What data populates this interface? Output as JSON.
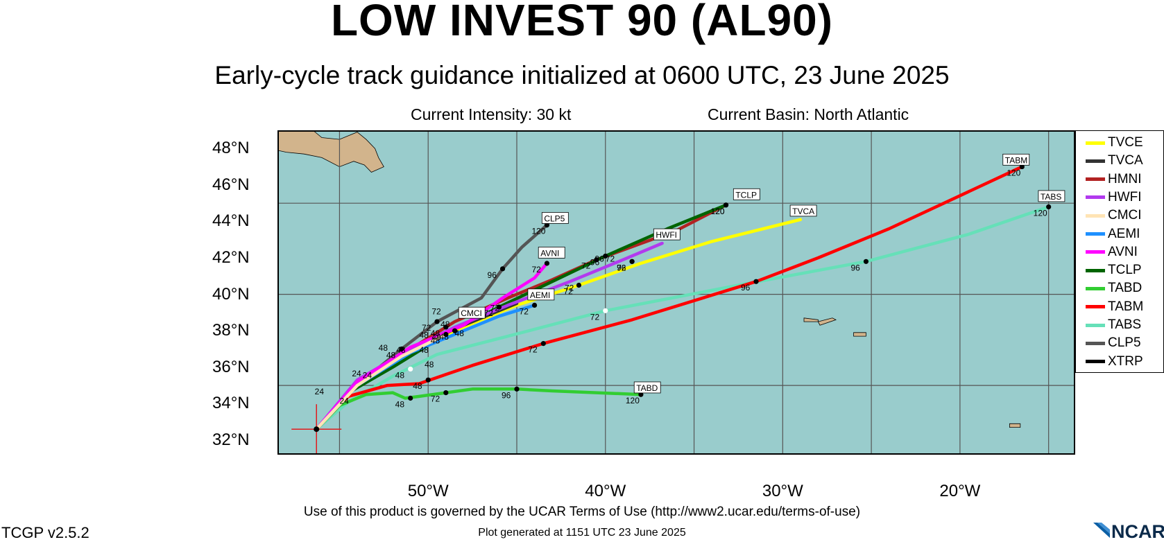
{
  "header": {
    "title": "LOW INVEST 90 (AL90)",
    "subtitle": "Early-cycle track guidance initialized at 0600 UTC, 23 June 2025",
    "intensity": "Current Intensity: 30 kt",
    "basin": "Current Basin: North Atlantic"
  },
  "axes": {
    "lat_labels": [
      "48°N",
      "46°N",
      "44°N",
      "42°N",
      "40°N",
      "38°N",
      "36°N",
      "34°N",
      "32°N"
    ],
    "lon_labels": [
      "50°W",
      "40°W",
      "30°W",
      "20°W"
    ],
    "lon_range": [
      -58.5,
      -13.5
    ],
    "lat_range": [
      31.2,
      49.0
    ]
  },
  "footer": {
    "terms": "Use of this product is governed by the UCAR Terms of Use (http://www2.ucar.edu/terms-of-use)",
    "generated": "Plot generated at 1151 UTC   23 June 2025",
    "version": "TCGP v2.5.2",
    "logo_text": "NCAR"
  },
  "colors": {
    "ocean": "#99cccc",
    "land": "#d2b48c",
    "grid": "#555555",
    "current_position": "#e31a1c"
  },
  "legend": [
    {
      "name": "TVCE",
      "color": "#ffff00"
    },
    {
      "name": "TVCA",
      "color": "#333333"
    },
    {
      "name": "HMNI",
      "color": "#b22222"
    },
    {
      "name": "HWFI",
      "color": "#b23aee"
    },
    {
      "name": "CMCI",
      "color": "#ffe4b5"
    },
    {
      "name": "AEMI",
      "color": "#1e90ff"
    },
    {
      "name": "AVNI",
      "color": "#ff00ff"
    },
    {
      "name": "TCLP",
      "color": "#006400"
    },
    {
      "name": "TABD",
      "color": "#32cd32"
    },
    {
      "name": "TABM",
      "color": "#ff0000"
    },
    {
      "name": "TABS",
      "color": "#66e0b8"
    },
    {
      "name": "CLP5",
      "color": "#555555"
    },
    {
      "name": "XTRP",
      "color": "#000000"
    }
  ],
  "chart_data": {
    "type": "map-tracks",
    "current_position": {
      "lon": -56.3,
      "lat": 32.6
    },
    "tracks": [
      {
        "name": "TABS",
        "color": "#66e0b8",
        "points": [
          [
            -56.3,
            32.6
          ],
          [
            -54.5,
            34.1
          ],
          [
            -52.0,
            35.5
          ],
          [
            -49.5,
            36.7
          ],
          [
            -45.5,
            37.7
          ],
          [
            -40.0,
            39.1
          ],
          [
            -32.5,
            40.5
          ],
          [
            -25.3,
            41.8
          ],
          [
            -19.5,
            43.3
          ],
          [
            -15.0,
            44.8
          ]
        ],
        "markers": [
          {
            "label": "48",
            "lon": -51.0,
            "lat": 35.9,
            "dot": "white"
          },
          {
            "label": "72",
            "lon": -40.0,
            "lat": 39.1,
            "dot": "white"
          },
          {
            "label": "96",
            "lon": -25.3,
            "lat": 41.8,
            "dot": "black"
          },
          {
            "label": "120",
            "lon": -15.0,
            "lat": 44.8,
            "dot": "black"
          }
        ],
        "tag": {
          "text": "TABS",
          "lon": -15.5,
          "lat": 45.2
        }
      },
      {
        "name": "TABM",
        "color": "#ff0000",
        "points": [
          [
            -56.3,
            32.6
          ],
          [
            -54.5,
            34.4
          ],
          [
            -52.3,
            35.0
          ],
          [
            -50.5,
            35.1
          ],
          [
            -49.0,
            35.6
          ],
          [
            -47.5,
            36.1
          ],
          [
            -43.5,
            37.3
          ],
          [
            -38.5,
            38.6
          ],
          [
            -31.5,
            40.7
          ],
          [
            -28.0,
            42.0
          ],
          [
            -24.0,
            43.6
          ],
          [
            -16.5,
            47.0
          ]
        ],
        "markers": [
          {
            "label": "48",
            "lon": -50.0,
            "lat": 35.3,
            "dot": "black"
          },
          {
            "label": "72",
            "lon": -43.5,
            "lat": 37.3,
            "dot": "black"
          },
          {
            "label": "96",
            "lon": -31.5,
            "lat": 40.7,
            "dot": "black"
          },
          {
            "label": "120",
            "lon": -16.5,
            "lat": 47.0,
            "dot": "black"
          }
        ],
        "tag": {
          "text": "TABM",
          "lon": -17.5,
          "lat": 47.2
        }
      },
      {
        "name": "TABD",
        "color": "#32cd32",
        "points": [
          [
            -56.3,
            32.6
          ],
          [
            -55.0,
            33.9
          ],
          [
            -53.5,
            34.5
          ],
          [
            -52.0,
            34.6
          ],
          [
            -51.3,
            34.3
          ],
          [
            -50.5,
            34.4
          ],
          [
            -49.0,
            34.6
          ],
          [
            -47.5,
            34.8
          ],
          [
            -45.0,
            34.8
          ],
          [
            -43.0,
            34.7
          ],
          [
            -38.0,
            34.5
          ]
        ],
        "markers": [
          {
            "label": "48",
            "lon": -51.0,
            "lat": 34.3,
            "dot": "black"
          },
          {
            "label": "72",
            "lon": -49.0,
            "lat": 34.6,
            "dot": "black"
          },
          {
            "label": "96",
            "lon": -45.0,
            "lat": 34.8,
            "dot": "black"
          },
          {
            "label": "120",
            "lon": -38.0,
            "lat": 34.5,
            "dot": "black"
          }
        ],
        "tag": {
          "text": "TABD",
          "lon": -38.3,
          "lat": 34.7
        }
      },
      {
        "name": "CLP5",
        "color": "#555555",
        "points": [
          [
            -56.3,
            32.6
          ],
          [
            -54.0,
            35.0
          ],
          [
            -51.5,
            37.0
          ],
          [
            -49.5,
            38.5
          ],
          [
            -47.0,
            39.8
          ],
          [
            -45.8,
            41.4
          ],
          [
            -44.7,
            42.6
          ],
          [
            -43.3,
            43.8
          ]
        ],
        "markers": [
          {
            "label": "48",
            "lon": -51.5,
            "lat": 37.0,
            "dot": "black"
          },
          {
            "label": "72",
            "lon": -49.5,
            "lat": 38.5,
            "dot": "black"
          },
          {
            "label": "96",
            "lon": -45.8,
            "lat": 41.4,
            "dot": "black"
          },
          {
            "label": "120",
            "lon": -43.3,
            "lat": 43.8,
            "dot": "black"
          }
        ],
        "tag": {
          "text": "CLP5",
          "lon": -43.5,
          "lat": 44.0
        }
      },
      {
        "name": "HMNI",
        "color": "#b22222",
        "points": [
          [
            -56.3,
            32.6
          ],
          [
            -54.0,
            35.2
          ],
          [
            -51.0,
            37.0
          ],
          [
            -48.5,
            38.5
          ],
          [
            -45.5,
            39.8
          ],
          [
            -43.0,
            40.8
          ],
          [
            -40.5,
            41.9
          ],
          [
            -36.0,
            43.5
          ],
          [
            -33.2,
            44.9
          ]
        ],
        "markers": [
          {
            "label": "48",
            "lon": -49.0,
            "lat": 38.2,
            "dot": "black"
          },
          {
            "label": "72",
            "lon": -40.5,
            "lat": 41.9,
            "dot": "black"
          },
          {
            "label": "120",
            "lon": -33.2,
            "lat": 44.9,
            "dot": "black"
          }
        ]
      },
      {
        "name": "TCLP",
        "color": "#006400",
        "points": [
          [
            -56.3,
            32.6
          ],
          [
            -54.5,
            34.6
          ],
          [
            -52.0,
            36.0
          ],
          [
            -49.0,
            37.8
          ],
          [
            -46.0,
            39.3
          ],
          [
            -43.0,
            40.7
          ],
          [
            -40.0,
            42.1
          ],
          [
            -36.5,
            43.6
          ],
          [
            -33.2,
            44.9
          ]
        ],
        "markers": [
          {
            "label": "72",
            "lon": -46.0,
            "lat": 39.3,
            "dot": "black"
          },
          {
            "label": "96",
            "lon": -40.0,
            "lat": 42.1,
            "dot": "black"
          },
          {
            "label": "120",
            "lon": -33.2,
            "lat": 44.9,
            "dot": "black"
          }
        ],
        "tag": {
          "text": "TCLP",
          "lon": -32.7,
          "lat": 45.3
        }
      },
      {
        "name": "TVCE",
        "color": "#ffff00",
        "points": [
          [
            -56.3,
            32.6
          ],
          [
            -54.0,
            35.0
          ],
          [
            -51.5,
            36.6
          ],
          [
            -48.5,
            38.0
          ],
          [
            -45.0,
            39.4
          ],
          [
            -41.5,
            40.5
          ],
          [
            -38.0,
            41.7
          ],
          [
            -34.0,
            42.9
          ],
          [
            -29.0,
            44.1
          ]
        ],
        "markers": [
          {
            "label": "48",
            "lon": -48.5,
            "lat": 38.0,
            "dot": "black"
          },
          {
            "label": "72",
            "lon": -41.5,
            "lat": 40.5,
            "dot": "black"
          },
          {
            "label": "96",
            "lon": -38.5,
            "lat": 41.8,
            "dot": "black"
          }
        ]
      },
      {
        "name": "TVCA",
        "color": "#333333",
        "points": [
          [
            -56.3,
            32.6
          ],
          [
            -54.0,
            35.1
          ],
          [
            -51.5,
            36.7
          ],
          [
            -48.5,
            38.1
          ],
          [
            -45.0,
            39.5
          ]
        ],
        "markers": [],
        "tag": {
          "text": "TVCA",
          "lon": -29.5,
          "lat": 44.4
        }
      },
      {
        "name": "HWFI",
        "color": "#b23aee",
        "points": [
          [
            -56.3,
            32.6
          ],
          [
            -54.0,
            35.3
          ],
          [
            -51.0,
            37.0
          ],
          [
            -48.5,
            38.2
          ],
          [
            -45.5,
            39.4
          ],
          [
            -42.0,
            40.7
          ],
          [
            -39.0,
            41.9
          ],
          [
            -36.8,
            42.8
          ]
        ],
        "markers": [
          {
            "label": "72",
            "lon": -38.5,
            "lat": 41.8,
            "dot": "black"
          }
        ],
        "tag": {
          "text": "HWFI",
          "lon": -37.2,
          "lat": 43.1
        }
      },
      {
        "name": "AVNI",
        "color": "#ff00ff",
        "points": [
          [
            -56.3,
            32.6
          ],
          [
            -54.0,
            35.2
          ],
          [
            -51.0,
            37.1
          ],
          [
            -48.0,
            38.3
          ],
          [
            -45.8,
            39.8
          ],
          [
            -44.0,
            40.9
          ],
          [
            -43.3,
            41.7
          ]
        ],
        "markers": [
          {
            "label": "72",
            "lon": -43.3,
            "lat": 41.7,
            "dot": "black"
          }
        ],
        "tag": {
          "text": "AVNI",
          "lon": -43.7,
          "lat": 42.1
        }
      },
      {
        "name": "AEMI",
        "color": "#1e90ff",
        "points": [
          [
            -56.3,
            32.6
          ],
          [
            -54.0,
            35.0
          ],
          [
            -51.0,
            36.8
          ],
          [
            -48.0,
            38.0
          ],
          [
            -46.0,
            38.8
          ],
          [
            -44.0,
            39.4
          ]
        ],
        "markers": [
          {
            "label": "72",
            "lon": -44.0,
            "lat": 39.4,
            "dot": "black"
          }
        ],
        "tag": {
          "text": "AEMI",
          "lon": -44.3,
          "lat": 39.8
        }
      },
      {
        "name": "CMCI",
        "color": "#ffe4b5",
        "points": [
          [
            -56.3,
            32.6
          ],
          [
            -54.0,
            35.0
          ],
          [
            -51.5,
            36.6
          ],
          [
            -49.0,
            37.8
          ]
        ],
        "markers": [
          {
            "label": "48",
            "lon": -49.0,
            "lat": 37.8,
            "dot": "black"
          }
        ],
        "tag": {
          "text": "CMCI",
          "lon": -48.2,
          "lat": 38.8
        }
      }
    ],
    "extra_labels": [
      {
        "text": "72",
        "lon": -49.8,
        "lat": 38.9
      },
      {
        "text": "48",
        "lon": -49.3,
        "lat": 38.2
      },
      {
        "text": "48",
        "lon": -50.5,
        "lat": 37.6
      },
      {
        "text": "48",
        "lon": -48.5,
        "lat": 37.7
      },
      {
        "text": "48",
        "lon": -49.8,
        "lat": 37.5
      },
      {
        "text": "48",
        "lon": -50.5,
        "lat": 36.8
      },
      {
        "text": "48",
        "lon": -51.8,
        "lat": 36.8
      },
      {
        "text": "48",
        "lon": -50.2,
        "lat": 36.0
      },
      {
        "text": "48",
        "lon": -52.8,
        "lat": 36.9
      },
      {
        "text": "72",
        "lon": -46.5,
        "lat": 39.1
      },
      {
        "text": "72",
        "lon": -42.3,
        "lat": 40.2
      },
      {
        "text": "72",
        "lon": -40.0,
        "lat": 41.8
      },
      {
        "text": "96",
        "lon": -40.6,
        "lat": 41.8
      },
      {
        "text": "24",
        "lon": -56.4,
        "lat": 34.5
      },
      {
        "text": "24",
        "lon": -55.0,
        "lat": 34.0
      },
      {
        "text": "24",
        "lon": -54.3,
        "lat": 35.5
      },
      {
        "text": "24",
        "lon": -53.7,
        "lat": 35.4
      }
    ],
    "land": [
      {
        "name": "newfoundland",
        "points": [
          [
            -58.5,
            49.0
          ],
          [
            -56.5,
            49.0
          ],
          [
            -56.0,
            48.6
          ],
          [
            -55.0,
            48.5
          ],
          [
            -54.0,
            48.9
          ],
          [
            -53.5,
            48.5
          ],
          [
            -53.0,
            48.0
          ],
          [
            -52.8,
            47.5
          ],
          [
            -52.5,
            47.0
          ],
          [
            -53.2,
            46.7
          ],
          [
            -53.6,
            47.1
          ],
          [
            -54.2,
            47.3
          ],
          [
            -55.0,
            47.0
          ],
          [
            -56.0,
            47.5
          ],
          [
            -57.0,
            47.7
          ],
          [
            -58.0,
            47.8
          ],
          [
            -58.5,
            47.9
          ]
        ]
      },
      {
        "name": "azores-1",
        "points": [
          [
            -28.8,
            38.7
          ],
          [
            -28.0,
            38.6
          ],
          [
            -28.0,
            38.5
          ],
          [
            -28.8,
            38.5
          ]
        ]
      },
      {
        "name": "azores-2",
        "points": [
          [
            -28.0,
            38.5
          ],
          [
            -27.2,
            38.7
          ],
          [
            -27.0,
            38.6
          ],
          [
            -27.9,
            38.3
          ]
        ]
      },
      {
        "name": "azores-3",
        "points": [
          [
            -26.0,
            37.9
          ],
          [
            -25.3,
            37.9
          ],
          [
            -25.3,
            37.7
          ],
          [
            -26.0,
            37.7
          ]
        ]
      },
      {
        "name": "madeira",
        "points": [
          [
            -17.2,
            32.9
          ],
          [
            -16.6,
            32.9
          ],
          [
            -16.6,
            32.7
          ],
          [
            -17.2,
            32.7
          ]
        ]
      }
    ]
  }
}
